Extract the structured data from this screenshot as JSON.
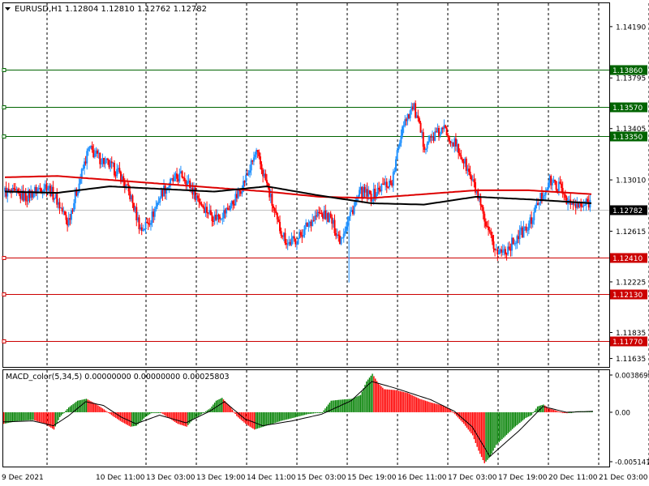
{
  "header": {
    "symbol_tf": "EURUSD,H1",
    "ohlc": "1.12804 1.12810 1.12762 1.12782"
  },
  "macd_header": "MACD_color(5,34,5) 0.00000000 0.00000000 0.00025803",
  "colors": {
    "background": "#ffffff",
    "bull": "#1e90ff",
    "bear": "#ff0000",
    "ma_fast": "#000000",
    "ma_slow": "#dd0000",
    "support": "#cc0000",
    "resistance": "#006400",
    "hist_up": "#008000",
    "hist_down": "#ff0000",
    "grid": "#000000"
  },
  "chart_data": [
    {
      "type": "candlestick",
      "title": "EURUSD,H1",
      "price_scale": [
        "1.14190",
        "1.13795",
        "1.13405",
        "1.13010",
        "1.12615",
        "1.12225",
        "1.11835",
        "1.11635"
      ],
      "ylim": [
        1.1157,
        1.1437
      ],
      "current_price": "1.12782",
      "levels": [
        {
          "label": "1.13860",
          "value": 1.1386,
          "kind": "resistance"
        },
        {
          "label": "1.13570",
          "value": 1.1357,
          "kind": "resistance"
        },
        {
          "label": "1.13350",
          "value": 1.1335,
          "kind": "resistance"
        },
        {
          "label": "1.12410",
          "value": 1.1241,
          "kind": "support"
        },
        {
          "label": "1.12130",
          "value": 1.1213,
          "kind": "support"
        },
        {
          "label": "1.11770",
          "value": 1.1177,
          "kind": "support"
        }
      ],
      "time_labels": [
        "9 Dec 2021",
        "10 Dec 11:00",
        "13 Dec 03:00",
        "13 Dec 19:00",
        "14 Dec 11:00",
        "15 Dec 03:00",
        "15 Dec 19:00",
        "16 Dec 11:00",
        "17 Dec 03:00",
        "17 Dec 19:00",
        "20 Dec 11:00",
        "21 Dec 03:00"
      ],
      "close_path": [
        [
          0,
          1.1292
        ],
        [
          8,
          1.129
        ],
        [
          16,
          1.1288
        ],
        [
          24,
          1.1293
        ],
        [
          32,
          1.1297
        ],
        [
          40,
          1.1285
        ],
        [
          48,
          1.1268
        ],
        [
          56,
          1.1296
        ],
        [
          64,
          1.1325
        ],
        [
          72,
          1.1318
        ],
        [
          80,
          1.1312
        ],
        [
          88,
          1.1305
        ],
        [
          96,
          1.1288
        ],
        [
          104,
          1.1262
        ],
        [
          112,
          1.1272
        ],
        [
          120,
          1.1292
        ],
        [
          128,
          1.13
        ],
        [
          136,
          1.1305
        ],
        [
          144,
          1.1292
        ],
        [
          152,
          1.128
        ],
        [
          160,
          1.1272
        ],
        [
          168,
          1.1276
        ],
        [
          176,
          1.1286
        ],
        [
          184,
          1.1302
        ],
        [
          192,
          1.1322
        ],
        [
          200,
          1.1298
        ],
        [
          208,
          1.1268
        ],
        [
          216,
          1.1252
        ],
        [
          224,
          1.1256
        ],
        [
          232,
          1.1268
        ],
        [
          240,
          1.1275
        ],
        [
          248,
          1.1272
        ],
        [
          256,
          1.1255
        ],
        [
          264,
          1.1275
        ],
        [
          272,
          1.1292
        ],
        [
          280,
          1.1288
        ],
        [
          288,
          1.1296
        ],
        [
          296,
          1.13
        ],
        [
          304,
          1.1345
        ],
        [
          312,
          1.1358
        ],
        [
          320,
          1.1328
        ],
        [
          328,
          1.1335
        ],
        [
          336,
          1.134
        ],
        [
          344,
          1.1328
        ],
        [
          352,
          1.1312
        ],
        [
          360,
          1.1292
        ],
        [
          368,
          1.1262
        ],
        [
          376,
          1.1245
        ],
        [
          384,
          1.1248
        ],
        [
          392,
          1.1258
        ],
        [
          400,
          1.1265
        ],
        [
          408,
          1.1285
        ],
        [
          416,
          1.13
        ],
        [
          424,
          1.1295
        ],
        [
          432,
          1.1282
        ],
        [
          440,
          1.128
        ],
        [
          448,
          1.1285
        ]
      ],
      "ma_fast": [
        [
          0,
          1.1292
        ],
        [
          40,
          1.1291
        ],
        [
          80,
          1.1296
        ],
        [
          120,
          1.1294
        ],
        [
          160,
          1.1292
        ],
        [
          200,
          1.1296
        ],
        [
          240,
          1.1289
        ],
        [
          280,
          1.1283
        ],
        [
          320,
          1.1282
        ],
        [
          360,
          1.1288
        ],
        [
          400,
          1.1286
        ],
        [
          448,
          1.1283
        ]
      ],
      "ma_slow": [
        [
          0,
          1.1303
        ],
        [
          40,
          1.1304
        ],
        [
          80,
          1.1301
        ],
        [
          120,
          1.1298
        ],
        [
          160,
          1.1295
        ],
        [
          200,
          1.1292
        ],
        [
          240,
          1.1288
        ],
        [
          280,
          1.1287
        ],
        [
          320,
          1.129
        ],
        [
          360,
          1.1293
        ],
        [
          400,
          1.1293
        ],
        [
          448,
          1.129
        ]
      ]
    },
    {
      "type": "bar",
      "title": "MACD_color(5,34,5)",
      "scale_labels": [
        "0.0038699",
        "0.00",
        "-0.005141"
      ],
      "ylim": [
        -0.005141,
        0.0038699
      ],
      "histogram": [
        [
          0,
          -0.0012
        ],
        [
          10,
          -0.0009
        ],
        [
          20,
          -0.0008
        ],
        [
          28,
          -0.0012
        ],
        [
          34,
          -0.0018
        ],
        [
          38,
          -0.0005
        ],
        [
          44,
          0.0005
        ],
        [
          50,
          0.0012
        ],
        [
          56,
          0.0014
        ],
        [
          62,
          0.0009
        ],
        [
          68,
          0.0003
        ],
        [
          74,
          -0.0004
        ],
        [
          80,
          -0.001
        ],
        [
          86,
          -0.0015
        ],
        [
          90,
          -0.0014
        ],
        [
          96,
          -0.0005
        ],
        [
          100,
          -0.0001
        ],
        [
          106,
          0.0
        ],
        [
          112,
          -0.0006
        ],
        [
          118,
          -0.0012
        ],
        [
          124,
          -0.0015
        ],
        [
          128,
          -0.0008
        ],
        [
          134,
          -0.0002
        ],
        [
          140,
          0.0004
        ],
        [
          144,
          0.0012
        ],
        [
          148,
          0.0015
        ],
        [
          154,
          0.0005
        ],
        [
          158,
          -0.0004
        ],
        [
          164,
          -0.0012
        ],
        [
          170,
          -0.0018
        ],
        [
          176,
          -0.0015
        ],
        [
          182,
          -0.0012
        ],
        [
          188,
          -0.0009
        ],
        [
          196,
          -0.0006
        ],
        [
          206,
          -0.0002
        ],
        [
          216,
          0.0
        ],
        [
          222,
          0.0012
        ],
        [
          228,
          0.0013
        ],
        [
          236,
          0.0014
        ],
        [
          242,
          0.0018
        ],
        [
          246,
          0.0032
        ],
        [
          250,
          0.004
        ],
        [
          254,
          0.003
        ],
        [
          258,
          0.0024
        ],
        [
          266,
          0.0023
        ],
        [
          274,
          0.002
        ],
        [
          282,
          0.0014
        ],
        [
          290,
          0.001
        ],
        [
          298,
          0.0007
        ],
        [
          302,
          0.0004
        ],
        [
          306,
          -0.0002
        ],
        [
          312,
          -0.0012
        ],
        [
          318,
          -0.0024
        ],
        [
          322,
          -0.004
        ],
        [
          326,
          -0.0053
        ],
        [
          330,
          -0.0046
        ],
        [
          334,
          -0.0034
        ],
        [
          338,
          -0.0028
        ],
        [
          342,
          -0.0022
        ],
        [
          346,
          -0.0016
        ],
        [
          350,
          -0.0011
        ],
        [
          354,
          -0.0006
        ],
        [
          358,
          -0.0003
        ],
        [
          362,
          0.0006
        ],
        [
          366,
          0.0008
        ],
        [
          370,
          0.0004
        ],
        [
          376,
          0.0001
        ],
        [
          382,
          -0.0001
        ],
        [
          388,
          0.0001
        ],
        [
          394,
          0.0001
        ],
        [
          400,
          0.0001
        ]
      ],
      "signal": [
        [
          0,
          -0.001
        ],
        [
          20,
          -0.0009
        ],
        [
          34,
          -0.0014
        ],
        [
          44,
          -0.0004
        ],
        [
          56,
          0.0011
        ],
        [
          68,
          0.0007
        ],
        [
          80,
          -0.0005
        ],
        [
          90,
          -0.0012
        ],
        [
          106,
          -0.0003
        ],
        [
          124,
          -0.0011
        ],
        [
          140,
          0.0001
        ],
        [
          150,
          0.0011
        ],
        [
          164,
          -0.0007
        ],
        [
          176,
          -0.0014
        ],
        [
          196,
          -0.0009
        ],
        [
          216,
          -0.0002
        ],
        [
          236,
          0.0012
        ],
        [
          250,
          0.0032
        ],
        [
          266,
          0.0025
        ],
        [
          290,
          0.0013
        ],
        [
          306,
          0.0001
        ],
        [
          318,
          -0.0015
        ],
        [
          330,
          -0.0046
        ],
        [
          350,
          -0.0019
        ],
        [
          366,
          0.0006
        ],
        [
          382,
          0.0
        ],
        [
          400,
          0.0001
        ]
      ]
    }
  ]
}
